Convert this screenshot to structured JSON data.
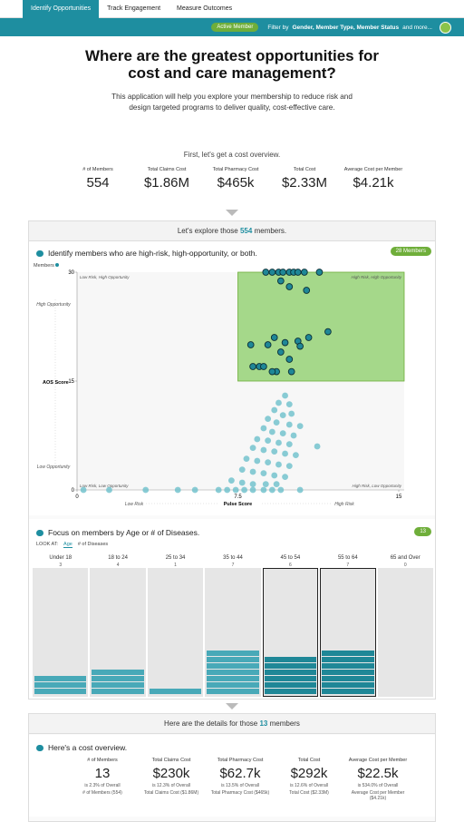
{
  "nav": {
    "tabs": [
      "Identify Opportunities",
      "Track Engagement",
      "Measure Outcomes"
    ]
  },
  "filter": {
    "active": "Active Member",
    "prefix": "Filter by",
    "fields": "Gender, Member Type, Member Status",
    "suffix": "and more..."
  },
  "header": {
    "title": "Where are the greatest opportunities for cost and care management?",
    "intro": "This application will help you explore your membership to reduce risk and design targeted programs to deliver quality, cost-effective care.",
    "overview": "First, let's get a cost overview."
  },
  "kpis": [
    {
      "label": "# of Members",
      "value": "554"
    },
    {
      "label": "Total Claims Cost",
      "value": "$1.86M"
    },
    {
      "label": "Total Pharmacy Cost",
      "value": "$465k"
    },
    {
      "label": "Total Cost",
      "value": "$2.33M"
    },
    {
      "label": "Average Cost per Member",
      "value": "$4.21k"
    }
  ],
  "explore": {
    "prefix": "Let's explore those",
    "count": "554",
    "suffix": "members."
  },
  "risk": {
    "title": "Identify members who are high-risk, high-opportunity, or both.",
    "badge": "28 Members",
    "legend": "Members",
    "chart_data": {
      "type": "scatter",
      "x_label": "Pulse Score",
      "y_label": "AOS Score",
      "xlim": [
        0,
        15
      ],
      "ylim": [
        0,
        30
      ],
      "xticks": [
        0,
        7.5,
        15
      ],
      "yticks": [
        0,
        15,
        30
      ],
      "corners": [
        "Low Risk, High Opportunity",
        "High Risk, High Opportunity",
        "Low Risk, Low Opportunity",
        "High Risk, Low Opportunity"
      ],
      "y_notes": [
        "High Opportunity",
        "Low Opportunity"
      ],
      "x_notes": [
        "Low Risk",
        "High Risk"
      ],
      "high_color": "#1f8797",
      "low_color": "#6cbfcb",
      "region_color": "#a5d88a",
      "x": [
        8.8,
        9.1,
        9.4,
        9.6,
        9.9,
        10.1,
        10.3,
        10.6,
        11.3,
        9.5,
        9.9,
        10.7,
        11.7,
        10.8,
        9.2,
        9.7,
        10.3,
        8.9,
        10.4,
        8.1,
        9.5,
        9.9,
        8.2,
        8.5,
        8.7,
        9.3,
        10.0,
        9.1,
        9.7,
        9.4,
        9.9,
        9.2,
        10.0,
        9.6,
        8.9,
        9.3,
        9.9,
        10.4,
        8.7,
        9.1,
        9.6,
        10.1,
        8.4,
        8.9,
        9.4,
        9.9,
        11.2,
        8.2,
        8.7,
        9.2,
        9.7,
        10.2,
        7.9,
        8.4,
        8.9,
        9.4,
        9.9,
        7.7,
        8.2,
        8.7,
        9.2,
        9.7,
        7.2,
        7.7,
        8.2,
        8.8,
        9.3,
        6.6,
        7.0,
        7.4,
        7.8,
        8.2,
        8.7,
        9.1,
        9.5,
        0.3,
        1.5,
        3.2,
        4.7,
        5.5,
        10.4
      ],
      "y": [
        30,
        30,
        30,
        30,
        30,
        30,
        30,
        30,
        30,
        28.8,
        28,
        27.5,
        21.8,
        21,
        21,
        20.3,
        20.5,
        20,
        19.8,
        20,
        19,
        18,
        17,
        17,
        17,
        16.3,
        16.3,
        16.3,
        13,
        12,
        11.8,
        11,
        10.5,
        10.3,
        9.8,
        9.3,
        9,
        8.8,
        8.5,
        8,
        7.8,
        7.5,
        7,
        6.8,
        6.5,
        6.3,
        6,
        5.8,
        5.5,
        5.3,
        5,
        4.8,
        4.3,
        4,
        3.8,
        3.5,
        3.3,
        2.8,
        2.5,
        2.3,
        2,
        1.8,
        1.3,
        1,
        0.8,
        0.8,
        0.8,
        0,
        0,
        0,
        0,
        0,
        0,
        0,
        0,
        0,
        0,
        0,
        0,
        0,
        0
      ]
    }
  },
  "age": {
    "title": "Focus on members by Age or # of Diseases.",
    "badge": "13",
    "look_at": "LOOK AT:",
    "options": [
      "Age",
      "# of Diseases"
    ],
    "groups": [
      {
        "name": "Under 18",
        "count": 3,
        "selected": false
      },
      {
        "name": "18 to 24",
        "count": 4,
        "selected": false
      },
      {
        "name": "25 to 34",
        "count": 1,
        "selected": false
      },
      {
        "name": "35 to 44",
        "count": 7,
        "selected": false
      },
      {
        "name": "45 to 54",
        "count": 6,
        "selected": true
      },
      {
        "name": "55 to 64",
        "count": 7,
        "selected": true
      },
      {
        "name": "65 and Over",
        "count": 0,
        "selected": false
      }
    ]
  },
  "details": {
    "prefix": "Here are the details for those",
    "count": "13",
    "suffix": "members",
    "title": "Here's a cost overview.",
    "kpis": [
      {
        "label": "# of Members",
        "value": "13",
        "share": "is 2.3% of Overall",
        "ref": "# of Members (554)"
      },
      {
        "label": "Total Claims Cost",
        "value": "$230k",
        "share": "is 12.3% of Overall",
        "ref": "Total Claims Cost ($1.86M)"
      },
      {
        "label": "Total Pharmacy Cost",
        "value": "$62.7k",
        "share": "is 13.5% of Overall",
        "ref": "Total Pharmacy Cost ($465k)"
      },
      {
        "label": "Total Cost",
        "value": "$292k",
        "share": "is 12.6% of Overall",
        "ref": "Total Cost ($2.33M)"
      },
      {
        "label": "Average Cost per Member",
        "value": "$22.5k",
        "share": "is 534.0% of Overall",
        "ref": "Average Cost per Member ($4.21k)"
      }
    ]
  }
}
